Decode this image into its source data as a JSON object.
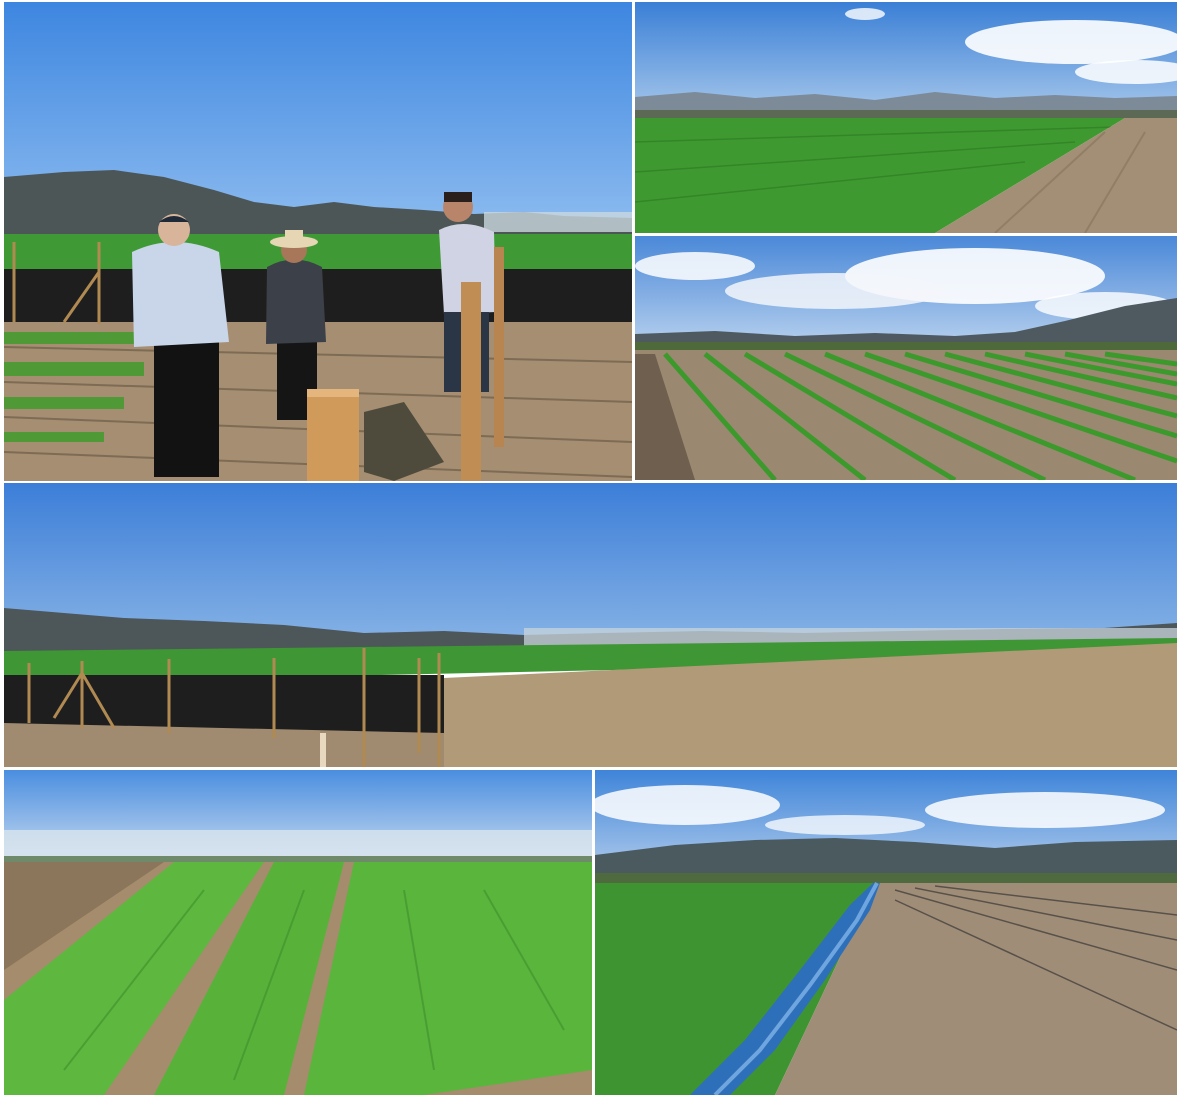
{
  "collage": {
    "panels": [
      {
        "id": "p1",
        "subject": "three-men-at-field-edge"
      },
      {
        "id": "p2",
        "subject": "green-crop-field-dirt-road"
      },
      {
        "id": "p3",
        "subject": "crop-rows-cloudy-sky"
      },
      {
        "id": "p4",
        "subject": "panorama-fenced-field"
      },
      {
        "id": "p5",
        "subject": "close-crop-rows"
      },
      {
        "id": "p6",
        "subject": "irrigation-hose-field"
      }
    ]
  },
  "colors": {
    "sky": "#3f86dd",
    "sky_light": "#7fb0ea",
    "mountain": "#4e5a5c",
    "crop": "#3f9a2e",
    "soil": "#a08c70",
    "hose": "#2f6fb8"
  }
}
